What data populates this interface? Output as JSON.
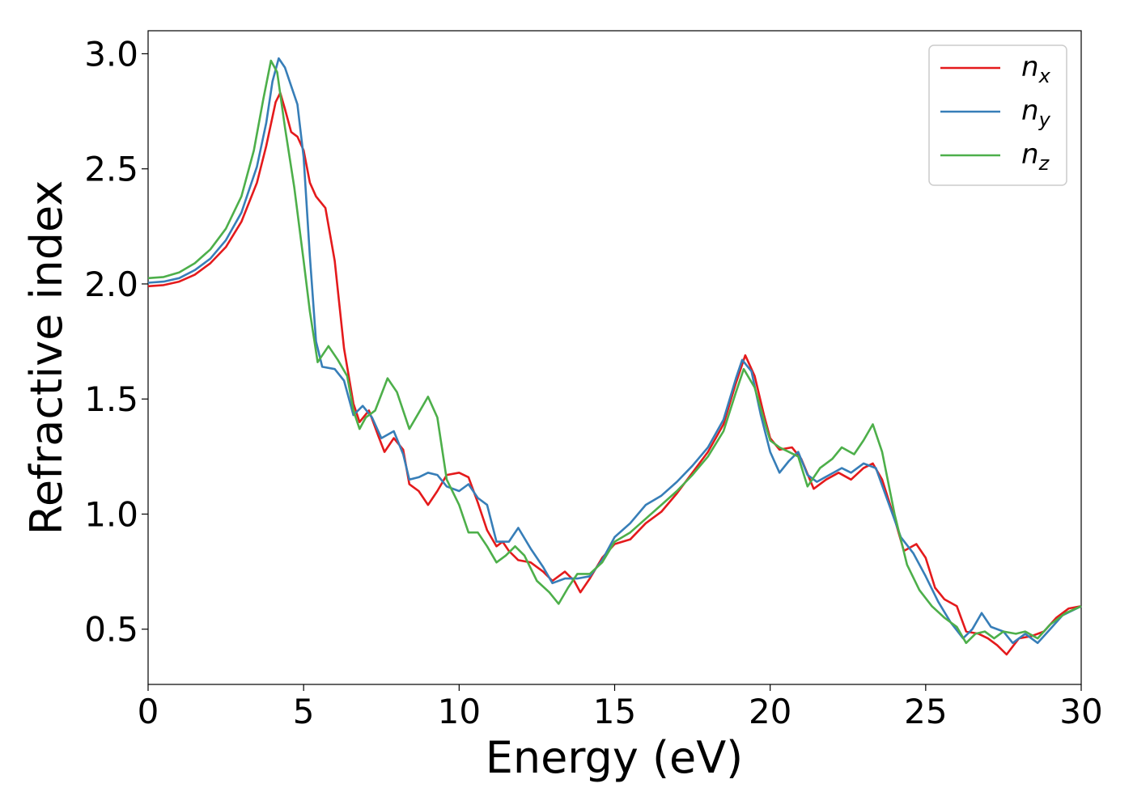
{
  "chart_data": {
    "type": "line",
    "title": "",
    "xlabel": "Energy (eV)",
    "ylabel": "Refractive index",
    "xlim": [
      0,
      30
    ],
    "ylim": [
      0.26,
      3.1
    ],
    "xticks": [
      "0",
      "5",
      "10",
      "15",
      "20",
      "25",
      "30"
    ],
    "yticks": [
      "0.5",
      "1.0",
      "1.5",
      "2.0",
      "2.5",
      "3.0"
    ],
    "grid": false,
    "legend_position": "top-right",
    "series": [
      {
        "name": "n",
        "subscript": "x",
        "color": "#e41a1c",
        "points": [
          [
            0,
            1.99
          ],
          [
            0.5,
            1.995
          ],
          [
            1,
            2.01
          ],
          [
            1.5,
            2.04
          ],
          [
            2,
            2.09
          ],
          [
            2.5,
            2.16
          ],
          [
            3,
            2.27
          ],
          [
            3.5,
            2.44
          ],
          [
            3.8,
            2.6
          ],
          [
            4.1,
            2.79
          ],
          [
            4.25,
            2.83
          ],
          [
            4.4,
            2.76
          ],
          [
            4.6,
            2.66
          ],
          [
            4.8,
            2.64
          ],
          [
            5.0,
            2.58
          ],
          [
            5.2,
            2.44
          ],
          [
            5.4,
            2.38
          ],
          [
            5.7,
            2.33
          ],
          [
            6.0,
            2.1
          ],
          [
            6.3,
            1.72
          ],
          [
            6.6,
            1.48
          ],
          [
            6.8,
            1.4
          ],
          [
            7.1,
            1.45
          ],
          [
            7.4,
            1.34
          ],
          [
            7.6,
            1.27
          ],
          [
            7.9,
            1.33
          ],
          [
            8.2,
            1.28
          ],
          [
            8.4,
            1.13
          ],
          [
            8.7,
            1.1
          ],
          [
            9.0,
            1.04
          ],
          [
            9.3,
            1.1
          ],
          [
            9.6,
            1.17
          ],
          [
            10.0,
            1.18
          ],
          [
            10.3,
            1.16
          ],
          [
            10.6,
            1.05
          ],
          [
            10.9,
            0.93
          ],
          [
            11.2,
            0.86
          ],
          [
            11.4,
            0.88
          ],
          [
            11.6,
            0.84
          ],
          [
            11.9,
            0.8
          ],
          [
            12.3,
            0.79
          ],
          [
            12.7,
            0.75
          ],
          [
            13.0,
            0.71
          ],
          [
            13.4,
            0.75
          ],
          [
            13.7,
            0.71
          ],
          [
            13.9,
            0.66
          ],
          [
            14.2,
            0.72
          ],
          [
            14.6,
            0.81
          ],
          [
            15.0,
            0.87
          ],
          [
            15.5,
            0.89
          ],
          [
            16.0,
            0.96
          ],
          [
            16.5,
            1.01
          ],
          [
            17.0,
            1.09
          ],
          [
            17.5,
            1.18
          ],
          [
            18.0,
            1.27
          ],
          [
            18.5,
            1.39
          ],
          [
            18.9,
            1.57
          ],
          [
            19.2,
            1.69
          ],
          [
            19.5,
            1.6
          ],
          [
            19.8,
            1.43
          ],
          [
            20.0,
            1.33
          ],
          [
            20.3,
            1.28
          ],
          [
            20.7,
            1.29
          ],
          [
            21.0,
            1.24
          ],
          [
            21.4,
            1.11
          ],
          [
            21.8,
            1.15
          ],
          [
            22.2,
            1.18
          ],
          [
            22.6,
            1.15
          ],
          [
            23.0,
            1.2
          ],
          [
            23.3,
            1.22
          ],
          [
            23.6,
            1.15
          ],
          [
            24.0,
            0.98
          ],
          [
            24.3,
            0.84
          ],
          [
            24.7,
            0.87
          ],
          [
            25.0,
            0.81
          ],
          [
            25.3,
            0.68
          ],
          [
            25.6,
            0.63
          ],
          [
            26.0,
            0.6
          ],
          [
            26.3,
            0.49
          ],
          [
            26.7,
            0.48
          ],
          [
            27.0,
            0.46
          ],
          [
            27.3,
            0.43
          ],
          [
            27.6,
            0.39
          ],
          [
            28.0,
            0.46
          ],
          [
            28.4,
            0.47
          ],
          [
            28.8,
            0.49
          ],
          [
            29.2,
            0.55
          ],
          [
            29.6,
            0.59
          ],
          [
            30.0,
            0.6
          ]
        ]
      },
      {
        "name": "n",
        "subscript": "y",
        "color": "#377eb8",
        "points": [
          [
            0,
            2.005
          ],
          [
            0.5,
            2.01
          ],
          [
            1,
            2.025
          ],
          [
            1.5,
            2.06
          ],
          [
            2,
            2.11
          ],
          [
            2.5,
            2.19
          ],
          [
            3,
            2.31
          ],
          [
            3.5,
            2.51
          ],
          [
            3.8,
            2.7
          ],
          [
            4.0,
            2.88
          ],
          [
            4.2,
            2.98
          ],
          [
            4.4,
            2.94
          ],
          [
            4.6,
            2.86
          ],
          [
            4.8,
            2.78
          ],
          [
            5.0,
            2.55
          ],
          [
            5.2,
            2.12
          ],
          [
            5.4,
            1.75
          ],
          [
            5.6,
            1.64
          ],
          [
            6.0,
            1.63
          ],
          [
            6.3,
            1.58
          ],
          [
            6.6,
            1.43
          ],
          [
            6.9,
            1.47
          ],
          [
            7.2,
            1.42
          ],
          [
            7.5,
            1.33
          ],
          [
            7.9,
            1.36
          ],
          [
            8.2,
            1.26
          ],
          [
            8.4,
            1.15
          ],
          [
            8.7,
            1.16
          ],
          [
            9.0,
            1.18
          ],
          [
            9.3,
            1.17
          ],
          [
            9.6,
            1.12
          ],
          [
            10.0,
            1.1
          ],
          [
            10.3,
            1.13
          ],
          [
            10.6,
            1.07
          ],
          [
            10.9,
            1.04
          ],
          [
            11.2,
            0.88
          ],
          [
            11.6,
            0.88
          ],
          [
            11.9,
            0.94
          ],
          [
            12.3,
            0.85
          ],
          [
            12.7,
            0.77
          ],
          [
            13.0,
            0.7
          ],
          [
            13.4,
            0.72
          ],
          [
            13.8,
            0.72
          ],
          [
            14.2,
            0.73
          ],
          [
            14.6,
            0.8
          ],
          [
            15.0,
            0.9
          ],
          [
            15.5,
            0.96
          ],
          [
            16.0,
            1.04
          ],
          [
            16.5,
            1.08
          ],
          [
            17.0,
            1.14
          ],
          [
            17.5,
            1.21
          ],
          [
            18.0,
            1.29
          ],
          [
            18.5,
            1.41
          ],
          [
            18.9,
            1.59
          ],
          [
            19.1,
            1.67
          ],
          [
            19.4,
            1.62
          ],
          [
            19.7,
            1.43
          ],
          [
            20.0,
            1.27
          ],
          [
            20.3,
            1.18
          ],
          [
            20.6,
            1.23
          ],
          [
            20.9,
            1.27
          ],
          [
            21.2,
            1.17
          ],
          [
            21.5,
            1.14
          ],
          [
            21.9,
            1.17
          ],
          [
            22.3,
            1.2
          ],
          [
            22.6,
            1.18
          ],
          [
            23.0,
            1.22
          ],
          [
            23.4,
            1.2
          ],
          [
            23.8,
            1.05
          ],
          [
            24.2,
            0.9
          ],
          [
            24.6,
            0.83
          ],
          [
            25.0,
            0.73
          ],
          [
            25.4,
            0.62
          ],
          [
            25.8,
            0.53
          ],
          [
            26.2,
            0.46
          ],
          [
            26.5,
            0.5
          ],
          [
            26.8,
            0.57
          ],
          [
            27.1,
            0.51
          ],
          [
            27.5,
            0.49
          ],
          [
            27.8,
            0.44
          ],
          [
            28.2,
            0.48
          ],
          [
            28.6,
            0.44
          ],
          [
            29.0,
            0.5
          ],
          [
            29.4,
            0.56
          ],
          [
            30.0,
            0.6
          ]
        ]
      },
      {
        "name": "n",
        "subscript": "z",
        "color": "#4daf4a",
        "points": [
          [
            0,
            2.025
          ],
          [
            0.5,
            2.03
          ],
          [
            1,
            2.05
          ],
          [
            1.5,
            2.09
          ],
          [
            2,
            2.15
          ],
          [
            2.5,
            2.24
          ],
          [
            3,
            2.38
          ],
          [
            3.4,
            2.58
          ],
          [
            3.7,
            2.8
          ],
          [
            3.95,
            2.97
          ],
          [
            4.15,
            2.92
          ],
          [
            4.4,
            2.68
          ],
          [
            4.7,
            2.42
          ],
          [
            5.0,
            2.1
          ],
          [
            5.2,
            1.88
          ],
          [
            5.45,
            1.66
          ],
          [
            5.8,
            1.73
          ],
          [
            6.1,
            1.67
          ],
          [
            6.4,
            1.6
          ],
          [
            6.6,
            1.45
          ],
          [
            6.8,
            1.37
          ],
          [
            7.0,
            1.42
          ],
          [
            7.3,
            1.45
          ],
          [
            7.7,
            1.59
          ],
          [
            8.0,
            1.53
          ],
          [
            8.4,
            1.37
          ],
          [
            8.7,
            1.44
          ],
          [
            9.0,
            1.51
          ],
          [
            9.3,
            1.42
          ],
          [
            9.6,
            1.15
          ],
          [
            10.0,
            1.04
          ],
          [
            10.3,
            0.92
          ],
          [
            10.6,
            0.92
          ],
          [
            10.9,
            0.86
          ],
          [
            11.2,
            0.79
          ],
          [
            11.5,
            0.82
          ],
          [
            11.8,
            0.86
          ],
          [
            12.1,
            0.82
          ],
          [
            12.5,
            0.71
          ],
          [
            12.9,
            0.66
          ],
          [
            13.2,
            0.61
          ],
          [
            13.5,
            0.68
          ],
          [
            13.8,
            0.74
          ],
          [
            14.2,
            0.74
          ],
          [
            14.6,
            0.79
          ],
          [
            15.0,
            0.88
          ],
          [
            15.5,
            0.92
          ],
          [
            16.0,
            0.98
          ],
          [
            16.5,
            1.04
          ],
          [
            17.0,
            1.1
          ],
          [
            17.5,
            1.17
          ],
          [
            18.0,
            1.25
          ],
          [
            18.5,
            1.36
          ],
          [
            18.9,
            1.53
          ],
          [
            19.15,
            1.63
          ],
          [
            19.5,
            1.55
          ],
          [
            19.8,
            1.41
          ],
          [
            20.0,
            1.32
          ],
          [
            20.3,
            1.29
          ],
          [
            20.6,
            1.27
          ],
          [
            20.9,
            1.25
          ],
          [
            21.2,
            1.12
          ],
          [
            21.6,
            1.2
          ],
          [
            22.0,
            1.24
          ],
          [
            22.3,
            1.29
          ],
          [
            22.7,
            1.26
          ],
          [
            23.0,
            1.32
          ],
          [
            23.3,
            1.39
          ],
          [
            23.6,
            1.27
          ],
          [
            24.0,
            1.0
          ],
          [
            24.4,
            0.78
          ],
          [
            24.8,
            0.67
          ],
          [
            25.2,
            0.6
          ],
          [
            25.6,
            0.55
          ],
          [
            26.0,
            0.51
          ],
          [
            26.3,
            0.44
          ],
          [
            26.6,
            0.48
          ],
          [
            26.9,
            0.49
          ],
          [
            27.2,
            0.46
          ],
          [
            27.5,
            0.49
          ],
          [
            27.9,
            0.48
          ],
          [
            28.2,
            0.49
          ],
          [
            28.6,
            0.46
          ],
          [
            29.0,
            0.52
          ],
          [
            29.5,
            0.57
          ],
          [
            30.0,
            0.6
          ]
        ]
      }
    ]
  }
}
